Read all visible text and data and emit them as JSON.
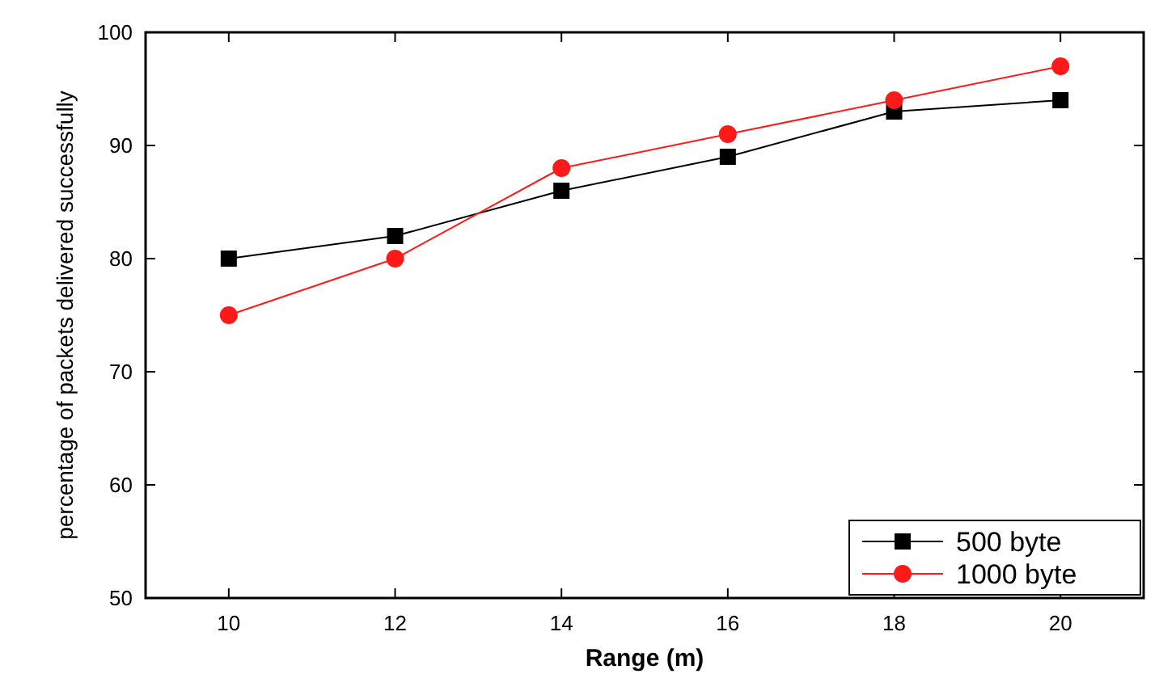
{
  "chart_data": {
    "type": "line",
    "xlabel": "Range (m)",
    "ylabel": "percentage of packets delivered successfully",
    "x": [
      10,
      12,
      14,
      16,
      18,
      20
    ],
    "series": [
      {
        "name": "500 byte",
        "color": "#000000",
        "marker": "square",
        "values": [
          80,
          82,
          86,
          89,
          93,
          94
        ]
      },
      {
        "name": "1000 byte",
        "color": "#ff1a1a",
        "marker": "circle",
        "values": [
          75,
          80,
          88,
          91,
          94,
          97
        ]
      }
    ],
    "xlim": [
      9,
      21
    ],
    "xticks": [
      10,
      12,
      14,
      16,
      18,
      20
    ],
    "ylim": [
      50,
      100
    ],
    "yticks": [
      50,
      60,
      70,
      80,
      90,
      100
    ],
    "legend": "bottom right",
    "grid": false,
    "line_style": "solid"
  }
}
